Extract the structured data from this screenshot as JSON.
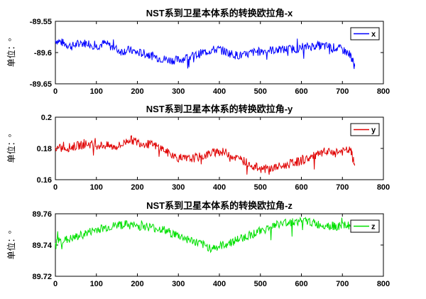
{
  "chart_data": [
    {
      "type": "line",
      "title": "NST系到卫星本体系的转换欧拉角-x",
      "ylabel": "单位：°",
      "xlim": [
        0,
        800
      ],
      "ylim": [
        -89.65,
        -89.55
      ],
      "xticks": [
        "0",
        "100",
        "200",
        "300",
        "400",
        "500",
        "600",
        "700",
        "800"
      ],
      "yticks": [
        "-89.55",
        "-89.6",
        "-89.65"
      ],
      "legend_position": "top-right",
      "series": [
        {
          "name": "x",
          "color": "#0000ff",
          "x": [
            0,
            20,
            40,
            60,
            80,
            100,
            120,
            140,
            160,
            180,
            200,
            220,
            240,
            260,
            280,
            300,
            320,
            340,
            360,
            380,
            400,
            420,
            440,
            460,
            480,
            500,
            520,
            540,
            560,
            580,
            600,
            620,
            640,
            660,
            680,
            700,
            720,
            730
          ],
          "y": [
            -89.58,
            -89.585,
            -89.59,
            -89.585,
            -89.585,
            -89.59,
            -89.585,
            -89.592,
            -89.598,
            -89.596,
            -89.6,
            -89.602,
            -89.606,
            -89.61,
            -89.612,
            -89.612,
            -89.608,
            -89.605,
            -89.6,
            -89.596,
            -89.595,
            -89.6,
            -89.604,
            -89.605,
            -89.6,
            -89.598,
            -89.596,
            -89.596,
            -89.595,
            -89.594,
            -89.594,
            -89.59,
            -89.589,
            -89.59,
            -89.592,
            -89.595,
            -89.604,
            -89.622
          ]
        }
      ]
    },
    {
      "type": "line",
      "title": "NST系到卫星本体系的转换欧拉角-y",
      "ylabel": "单位：°",
      "xlim": [
        0,
        800
      ],
      "ylim": [
        0.16,
        0.2
      ],
      "xticks": [
        "0",
        "100",
        "200",
        "300",
        "400",
        "500",
        "600",
        "700",
        "800"
      ],
      "yticks": [
        "0.2",
        "0.18",
        "0.16"
      ],
      "legend_position": "top-right",
      "series": [
        {
          "name": "y",
          "color": "#e00000",
          "x": [
            0,
            20,
            40,
            60,
            80,
            100,
            120,
            140,
            160,
            180,
            200,
            220,
            240,
            260,
            280,
            300,
            320,
            340,
            360,
            380,
            400,
            420,
            440,
            460,
            480,
            500,
            520,
            540,
            560,
            580,
            600,
            620,
            640,
            660,
            680,
            700,
            720,
            730
          ],
          "y": [
            0.18,
            0.18,
            0.181,
            0.182,
            0.183,
            0.182,
            0.182,
            0.181,
            0.182,
            0.186,
            0.184,
            0.183,
            0.182,
            0.18,
            0.176,
            0.174,
            0.173,
            0.174,
            0.175,
            0.177,
            0.178,
            0.177,
            0.174,
            0.172,
            0.169,
            0.167,
            0.167,
            0.168,
            0.169,
            0.171,
            0.172,
            0.174,
            0.176,
            0.177,
            0.178,
            0.178,
            0.179,
            0.169
          ]
        }
      ]
    },
    {
      "type": "line",
      "title": "NST系到卫星本体系的转换欧拉角-z",
      "ylabel": "单位：°",
      "xlim": [
        0,
        800
      ],
      "ylim": [
        89.72,
        89.76
      ],
      "xticks": [
        "0",
        "100",
        "200",
        "300",
        "400",
        "500",
        "600",
        "700",
        "800"
      ],
      "yticks": [
        "89.76",
        "89.74",
        "89.72"
      ],
      "legend_position": "top-right",
      "series": [
        {
          "name": "z",
          "color": "#00e000",
          "x": [
            0,
            20,
            40,
            60,
            80,
            100,
            120,
            140,
            160,
            180,
            200,
            220,
            240,
            260,
            280,
            300,
            320,
            340,
            360,
            380,
            400,
            420,
            440,
            460,
            480,
            500,
            520,
            540,
            560,
            580,
            600,
            620,
            640,
            660,
            680,
            700,
            720,
            730
          ],
          "y": [
            89.742,
            89.743,
            89.744,
            89.746,
            89.748,
            89.75,
            89.751,
            89.752,
            89.753,
            89.753,
            89.752,
            89.752,
            89.751,
            89.75,
            89.748,
            89.746,
            89.744,
            89.742,
            89.74,
            89.738,
            89.739,
            89.741,
            89.743,
            89.745,
            89.747,
            89.749,
            89.751,
            89.753,
            89.754,
            89.755,
            89.755,
            89.755,
            89.753,
            89.753,
            89.752,
            89.752,
            89.753,
            89.752
          ]
        }
      ]
    }
  ]
}
